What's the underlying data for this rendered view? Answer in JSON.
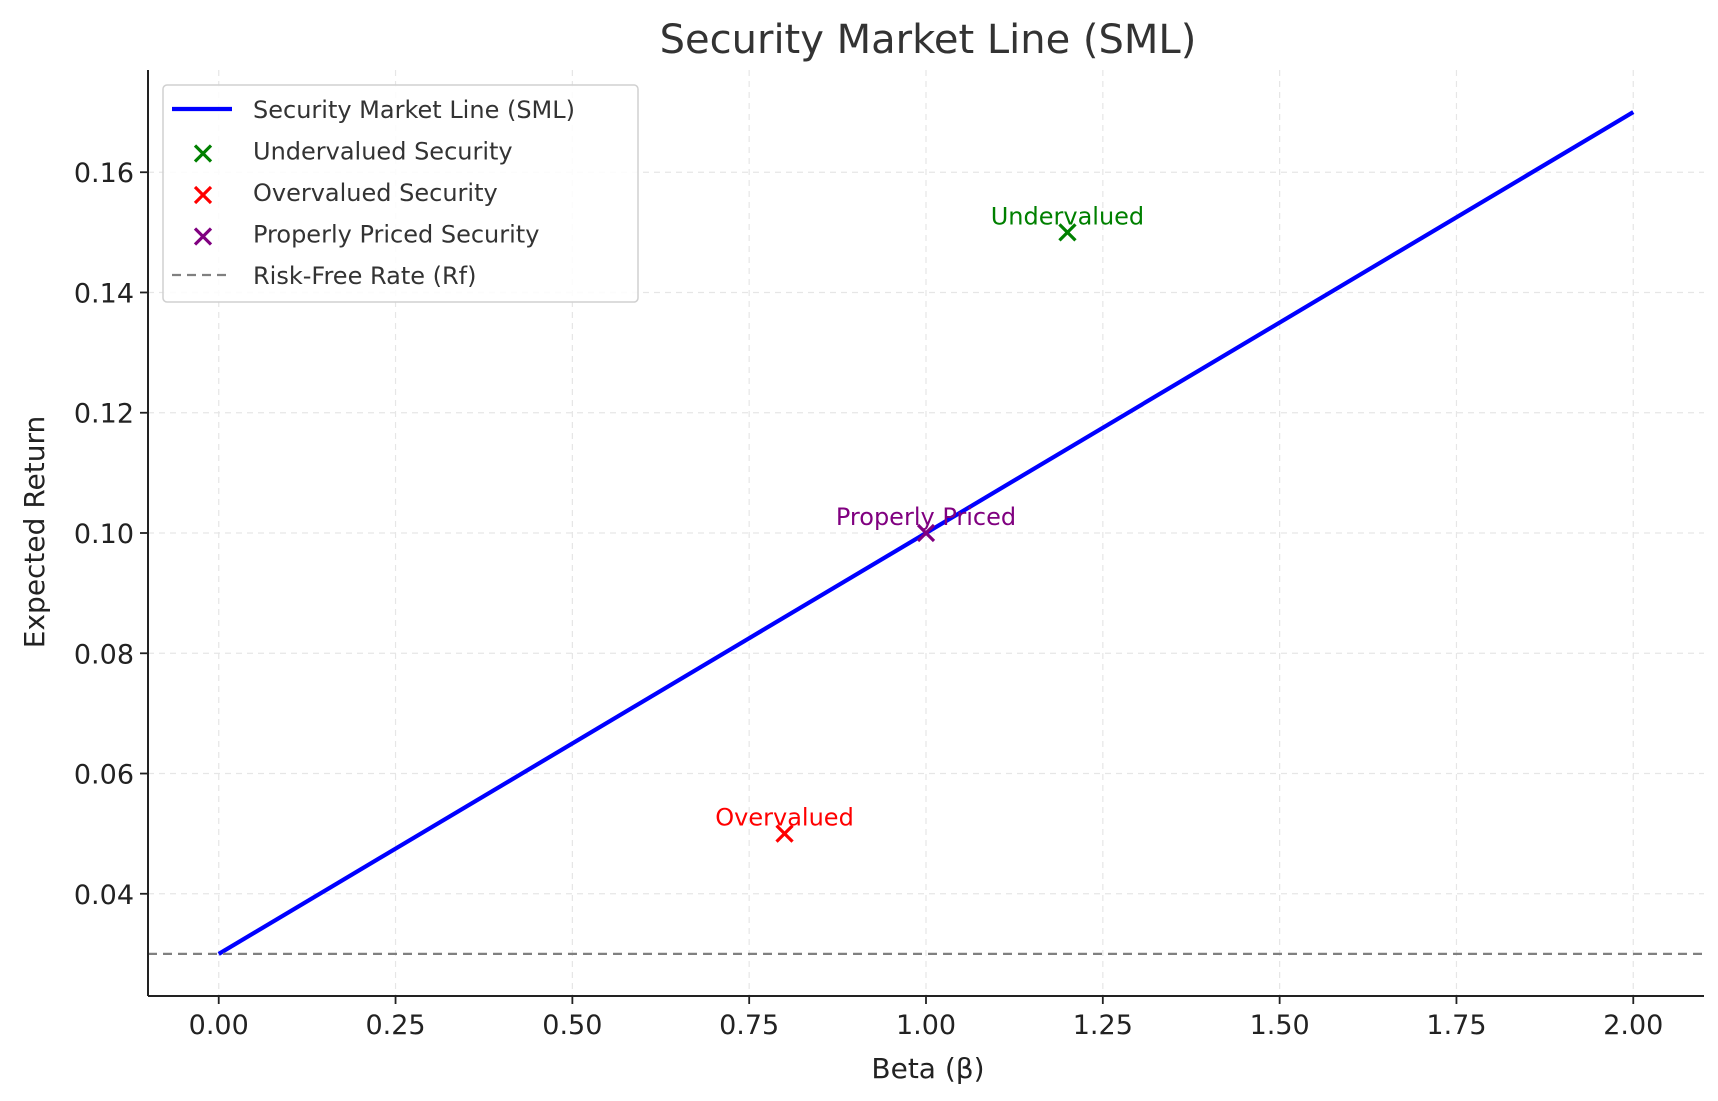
{
  "chart_data": {
    "type": "line",
    "title": "Security Market Line (SML)",
    "xlabel": "Beta (β)",
    "ylabel": "Expected Return",
    "xlim": [
      -0.1,
      2.1
    ],
    "ylim": [
      0.023,
      0.177
    ],
    "x_ticks": [
      0.0,
      0.25,
      0.5,
      0.75,
      1.0,
      1.25,
      1.5,
      1.75,
      2.0
    ],
    "x_tick_labels": [
      "0.00",
      "0.25",
      "0.50",
      "0.75",
      "1.00",
      "1.25",
      "1.50",
      "1.75",
      "2.00"
    ],
    "y_ticks": [
      0.04,
      0.06,
      0.08,
      0.1,
      0.12,
      0.14,
      0.16
    ],
    "y_tick_labels": [
      "0.04",
      "0.06",
      "0.08",
      "0.10",
      "0.12",
      "0.14",
      "0.16"
    ],
    "grid": true,
    "legend_position": "top-left",
    "series": [
      {
        "name": "Security Market Line (SML)",
        "kind": "line",
        "color": "#0000ff",
        "x": [
          0.0,
          2.0
        ],
        "y": [
          0.03,
          0.17
        ]
      },
      {
        "name": "Undervalued Security",
        "kind": "scatter",
        "marker": "x",
        "color": "#008000",
        "x": [
          1.2
        ],
        "y": [
          0.15
        ],
        "annotation": "Undervalued"
      },
      {
        "name": "Overvalued Security",
        "kind": "scatter",
        "marker": "x",
        "color": "#ff0000",
        "x": [
          0.8
        ],
        "y": [
          0.05
        ],
        "annotation": "Overvalued"
      },
      {
        "name": "Properly Priced Security",
        "kind": "scatter",
        "marker": "x",
        "color": "#800080",
        "x": [
          1.0
        ],
        "y": [
          0.1
        ],
        "annotation": "Properly Priced"
      },
      {
        "name": "Risk-Free Rate (Rf)",
        "kind": "hline",
        "dashed": true,
        "color": "#808080",
        "y": 0.03
      }
    ]
  }
}
